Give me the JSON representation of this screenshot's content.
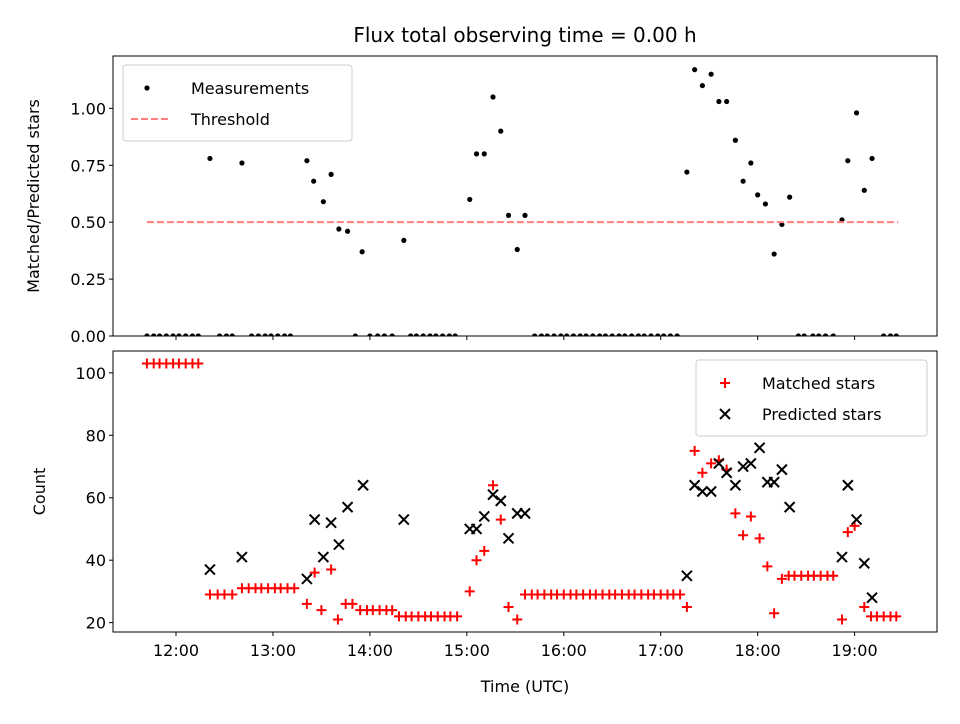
{
  "figure": {
    "title": "Flux total observing time = 0.00 h",
    "xlabel": "Time (UTC)",
    "xtick_labels": [
      "12:00",
      "13:00",
      "14:00",
      "15:00",
      "16:00",
      "17:00",
      "18:00",
      "19:00"
    ]
  },
  "colors": {
    "measurement": "#000000",
    "threshold": "#ff7f7f",
    "matched": "#ff0000",
    "predicted": "#000000"
  },
  "chart_data": [
    {
      "type": "scatter",
      "ylabel": "Matched/Predicted stars",
      "xlim": [
        11.35,
        19.85
      ],
      "ylim": [
        0,
        1.23
      ],
      "yticks": [
        0,
        0.25,
        0.5,
        0.75,
        1.0
      ],
      "ytick_labels": [
        "0.00",
        "0.25",
        "0.50",
        "0.75",
        "1.00"
      ],
      "legend_position": "upper-left",
      "series": [
        {
          "name": "Measurements",
          "marker": "dot",
          "x": [
            11.7,
            11.77,
            11.83,
            11.9,
            11.97,
            12.03,
            12.1,
            12.17,
            12.23,
            12.35,
            12.45,
            12.52,
            12.58,
            12.68,
            12.78,
            12.85,
            12.92,
            12.98,
            13.05,
            13.12,
            13.18,
            13.35,
            13.42,
            13.52,
            13.6,
            13.68,
            13.77,
            13.85,
            13.92,
            14.0,
            14.08,
            14.15,
            14.23,
            14.35,
            14.42,
            14.48,
            14.55,
            14.62,
            14.68,
            14.75,
            14.82,
            14.88,
            15.03,
            15.1,
            15.18,
            15.27,
            15.35,
            15.43,
            15.52,
            15.6,
            15.7,
            15.77,
            15.83,
            15.9,
            15.97,
            16.03,
            16.1,
            16.17,
            16.23,
            16.3,
            16.37,
            16.43,
            16.5,
            16.57,
            16.63,
            16.7,
            16.77,
            16.83,
            16.9,
            16.97,
            17.03,
            17.1,
            17.17,
            17.27,
            17.35,
            17.43,
            17.52,
            17.6,
            17.68,
            17.77,
            17.85,
            17.93,
            18.0,
            18.08,
            18.17,
            18.25,
            18.33,
            18.42,
            18.48,
            18.57,
            18.63,
            18.7,
            18.78,
            18.87,
            18.93,
            19.02,
            19.1,
            19.18,
            19.3,
            19.37,
            19.43
          ],
          "y": [
            0,
            0,
            0,
            0,
            0,
            0,
            0,
            0,
            0,
            0.78,
            0,
            0,
            0,
            0.76,
            0,
            0,
            0,
            0,
            0,
            0,
            0,
            0.77,
            0.68,
            0.59,
            0.71,
            0.47,
            0.46,
            0,
            0.37,
            0,
            0,
            0,
            0,
            0.42,
            0,
            0,
            0,
            0,
            0,
            0,
            0,
            0,
            0.6,
            0.8,
            0.8,
            1.05,
            0.9,
            0.53,
            0.38,
            0.53,
            0,
            0,
            0,
            0,
            0,
            0,
            0,
            0,
            0,
            0,
            0,
            0,
            0,
            0,
            0,
            0,
            0,
            0,
            0,
            0,
            0,
            0,
            0,
            0.72,
            1.17,
            1.1,
            1.15,
            1.03,
            1.03,
            0.86,
            0.68,
            0.76,
            0.62,
            0.58,
            0.36,
            0.49,
            0.61,
            0,
            0,
            0,
            0,
            0,
            0,
            0.51,
            0.77,
            0.98,
            0.64,
            0.78,
            0,
            0,
            0
          ]
        },
        {
          "name": "Threshold",
          "marker": "dashed-line",
          "x": [
            11.7,
            19.45
          ],
          "y": [
            0.5,
            0.5
          ]
        }
      ]
    },
    {
      "type": "scatter",
      "ylabel": "Count",
      "xlim": [
        11.35,
        19.85
      ],
      "ylim": [
        17,
        107
      ],
      "yticks": [
        20,
        40,
        60,
        80,
        100
      ],
      "ytick_labels": [
        "20",
        "40",
        "60",
        "80",
        "100"
      ],
      "legend_position": "upper-right",
      "series": [
        {
          "name": "Matched stars",
          "marker": "plus",
          "x": [
            11.7,
            11.77,
            11.83,
            11.9,
            11.97,
            12.03,
            12.1,
            12.17,
            12.23,
            12.35,
            12.43,
            12.5,
            12.58,
            12.68,
            12.75,
            12.82,
            12.88,
            12.95,
            13.02,
            13.08,
            13.15,
            13.22,
            13.35,
            13.43,
            13.5,
            13.6,
            13.67,
            13.75,
            13.82,
            13.9,
            13.97,
            14.03,
            14.1,
            14.17,
            14.23,
            14.3,
            14.37,
            14.43,
            14.5,
            14.57,
            14.63,
            14.7,
            14.77,
            14.83,
            14.9,
            15.03,
            15.1,
            15.18,
            15.27,
            15.35,
            15.43,
            15.52,
            15.6,
            15.67,
            15.73,
            15.8,
            15.87,
            15.93,
            16.0,
            16.07,
            16.13,
            16.2,
            16.27,
            16.33,
            16.4,
            16.47,
            16.53,
            16.6,
            16.67,
            16.73,
            16.8,
            16.87,
            16.93,
            17.0,
            17.07,
            17.13,
            17.2,
            17.27,
            17.35,
            17.43,
            17.52,
            17.6,
            17.68,
            17.77,
            17.85,
            17.93,
            18.02,
            18.1,
            18.17,
            18.25,
            18.32,
            18.38,
            18.45,
            18.52,
            18.58,
            18.65,
            18.72,
            18.78,
            18.87,
            18.93,
            19.0,
            19.1,
            19.17,
            19.23,
            19.3,
            19.37,
            19.43
          ],
          "y": [
            103,
            103,
            103,
            103,
            103,
            103,
            103,
            103,
            103,
            29,
            29,
            29,
            29,
            31,
            31,
            31,
            31,
            31,
            31,
            31,
            31,
            31,
            26,
            36,
            24,
            37,
            21,
            26,
            26,
            24,
            24,
            24,
            24,
            24,
            24,
            22,
            22,
            22,
            22,
            22,
            22,
            22,
            22,
            22,
            22,
            30,
            40,
            43,
            64,
            53,
            25,
            21,
            29,
            29,
            29,
            29,
            29,
            29,
            29,
            29,
            29,
            29,
            29,
            29,
            29,
            29,
            29,
            29,
            29,
            29,
            29,
            29,
            29,
            29,
            29,
            29,
            29,
            25,
            75,
            68,
            71,
            72,
            69,
            55,
            48,
            54,
            47,
            38,
            23,
            34,
            35,
            35,
            35,
            35,
            35,
            35,
            35,
            35,
            21,
            49,
            51,
            25,
            22,
            22,
            22,
            22,
            22
          ]
        },
        {
          "name": "Predicted stars",
          "marker": "x",
          "x": [
            12.35,
            12.68,
            13.35,
            13.43,
            13.52,
            13.6,
            13.68,
            13.77,
            13.93,
            14.35,
            15.03,
            15.1,
            15.18,
            15.27,
            15.35,
            15.43,
            15.52,
            15.6,
            17.27,
            17.35,
            17.43,
            17.52,
            17.6,
            17.68,
            17.77,
            17.85,
            17.93,
            18.02,
            18.1,
            18.17,
            18.25,
            18.33,
            18.87,
            18.93,
            19.02,
            19.1,
            19.18
          ],
          "y": [
            37,
            41,
            34,
            53,
            41,
            52,
            45,
            57,
            64,
            53,
            50,
            50,
            54,
            61,
            59,
            47,
            55,
            55,
            35,
            64,
            62,
            62,
            71,
            68,
            64,
            70,
            71,
            76,
            65,
            65,
            69,
            57,
            41,
            64,
            53,
            39,
            28
          ]
        }
      ]
    }
  ]
}
